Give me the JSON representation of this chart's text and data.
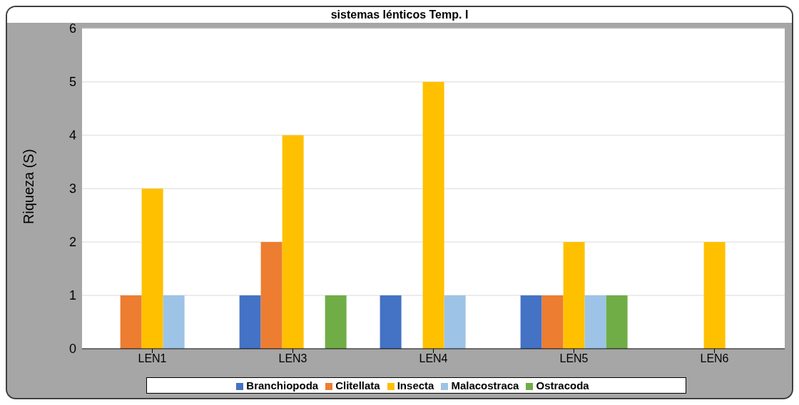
{
  "chart_data": {
    "type": "bar",
    "title": "sistemas lénticos Temp. I",
    "ylabel": "Riqueza (S)",
    "categories": [
      "LEN1",
      "LEN3",
      "LEN4",
      "LEN5",
      "LEN6"
    ],
    "series": [
      {
        "name": "Branchiopoda",
        "color": "#4472c4",
        "values": [
          0,
          1,
          1,
          1,
          0
        ]
      },
      {
        "name": "Clitellata",
        "color": "#ed7d31",
        "values": [
          1,
          2,
          0,
          1,
          0
        ]
      },
      {
        "name": "Insecta",
        "color": "#ffc000",
        "values": [
          3,
          4,
          5,
          2,
          2
        ]
      },
      {
        "name": "Malacostraca",
        "color": "#9dc3e6",
        "values": [
          1,
          0,
          1,
          1,
          0
        ]
      },
      {
        "name": "Ostracoda",
        "color": "#70ad47",
        "values": [
          0,
          1,
          0,
          1,
          0
        ]
      }
    ],
    "ylim": [
      0,
      6
    ],
    "yticks": [
      0,
      1,
      2,
      3,
      4,
      5,
      6
    ],
    "grid": "y",
    "legend": "bottom"
  }
}
